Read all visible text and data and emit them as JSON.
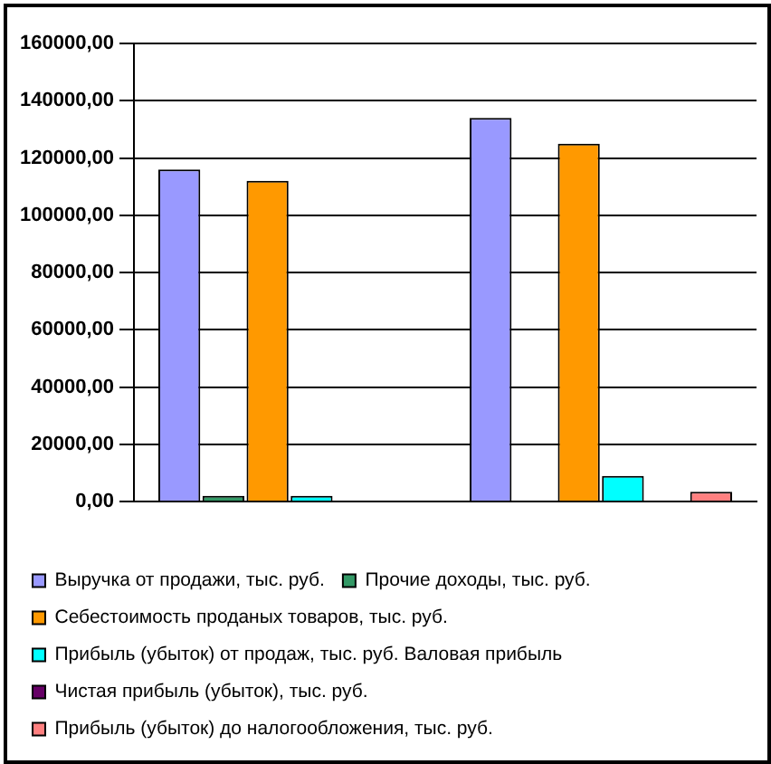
{
  "chart_data": {
    "type": "bar",
    "categories": [
      null,
      null
    ],
    "series": [
      {
        "name": "Выручка от продажи, тыс. руб.",
        "color": "#9999ff",
        "values": [
          116000,
          134000
        ]
      },
      {
        "name": "Прочие доходы, тыс. руб.",
        "color": "#339966",
        "values": [
          2000,
          null
        ]
      },
      {
        "name": "Себестоимость проданых товаров, тыс. руб.",
        "color": "#ff9900",
        "values": [
          112000,
          125000
        ]
      },
      {
        "name": "Прибыль (убыток) от продаж, тыс. руб. Валовая прибыль",
        "color": "#00ffff",
        "values": [
          2000,
          9000
        ]
      },
      {
        "name": "Чистая прибыль (убыток), тыс. руб.",
        "color": "#660066",
        "values": [
          null,
          null
        ]
      },
      {
        "name": "Прибыль (убыток) до налогообложения, тыс. руб.",
        "color": "#ff8080",
        "values": [
          null,
          3500
        ]
      }
    ],
    "ylim": [
      0,
      160000
    ],
    "yticks": [
      {
        "value": 0,
        "label": "0,00"
      },
      {
        "value": 20000,
        "label": "20000,00"
      },
      {
        "value": 40000,
        "label": "40000,00"
      },
      {
        "value": 60000,
        "label": "60000,00"
      },
      {
        "value": 80000,
        "label": "80000,00"
      },
      {
        "value": 100000,
        "label": "100000,00"
      },
      {
        "value": 120000,
        "label": "120000,00"
      },
      {
        "value": 140000,
        "label": "140000,00"
      },
      {
        "value": 160000,
        "label": "160000,00"
      }
    ],
    "grid": "y",
    "legend": "bottom"
  }
}
